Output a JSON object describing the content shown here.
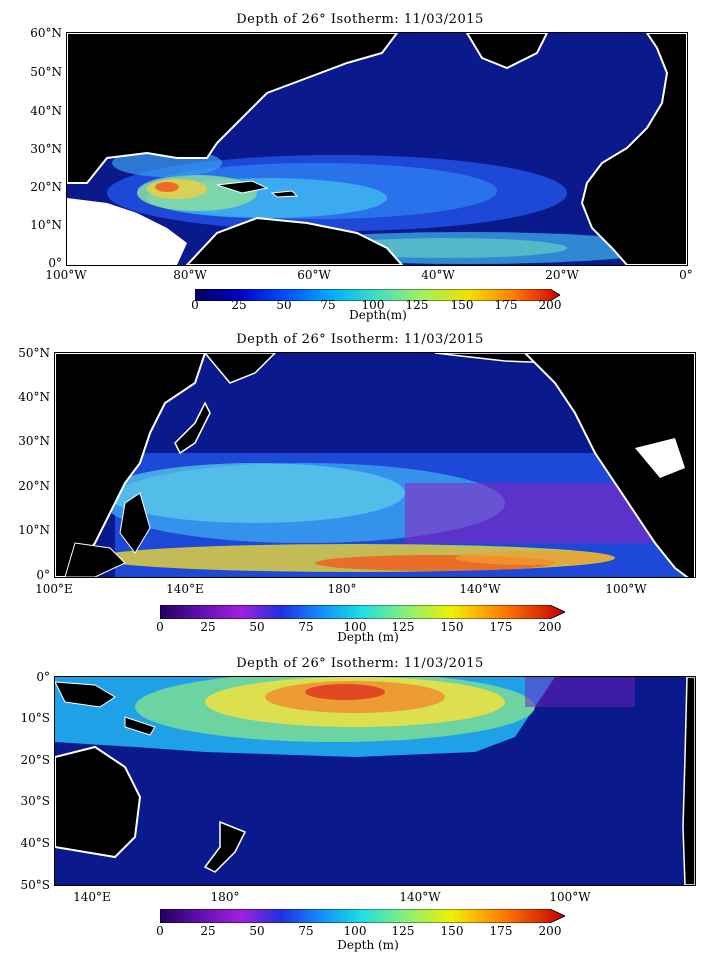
{
  "panels": [
    {
      "title": "Depth of 26° Isotherm: 11/03/2015",
      "lat_labels": [
        "60°N",
        "50°N",
        "40°N",
        "30°N",
        "20°N",
        "10°N",
        "0°"
      ],
      "lon_labels": [
        "100°W",
        "80°W",
        "60°W",
        "40°W",
        "20°W",
        "0°"
      ],
      "colorbar": {
        "ticks": [
          "0",
          "25",
          "50",
          "75",
          "100",
          "125",
          "150",
          "175",
          "200"
        ],
        "label": "Depth(m)",
        "palette": "atlantic"
      }
    },
    {
      "title": "Depth of 26° Isotherm: 11/03/2015",
      "lat_labels": [
        "50°N",
        "40°N",
        "30°N",
        "20°N",
        "10°N",
        "0°"
      ],
      "lon_labels": [
        "100°E",
        "140°E",
        "180°",
        "140°W",
        "100°W"
      ],
      "colorbar": {
        "ticks": [
          "0",
          "25",
          "50",
          "75",
          "100",
          "125",
          "150",
          "175",
          "200"
        ],
        "label": "Depth (m)",
        "palette": "pacific"
      }
    },
    {
      "title": "Depth of 26° Isotherm: 11/03/2015",
      "lat_labels": [
        "0°",
        "10°S",
        "20°S",
        "30°S",
        "40°S",
        "50°S"
      ],
      "lon_labels": [
        "140°E",
        "180°",
        "140°W",
        "100°W"
      ],
      "colorbar": {
        "ticks": [
          "0",
          "25",
          "50",
          "75",
          "100",
          "125",
          "150",
          "175",
          "200"
        ],
        "label": "Depth (m)",
        "palette": "pacific"
      }
    }
  ],
  "colors": {
    "ocean_base": "#0a1a8c",
    "land": "#000000",
    "coast": "#ffffff"
  }
}
